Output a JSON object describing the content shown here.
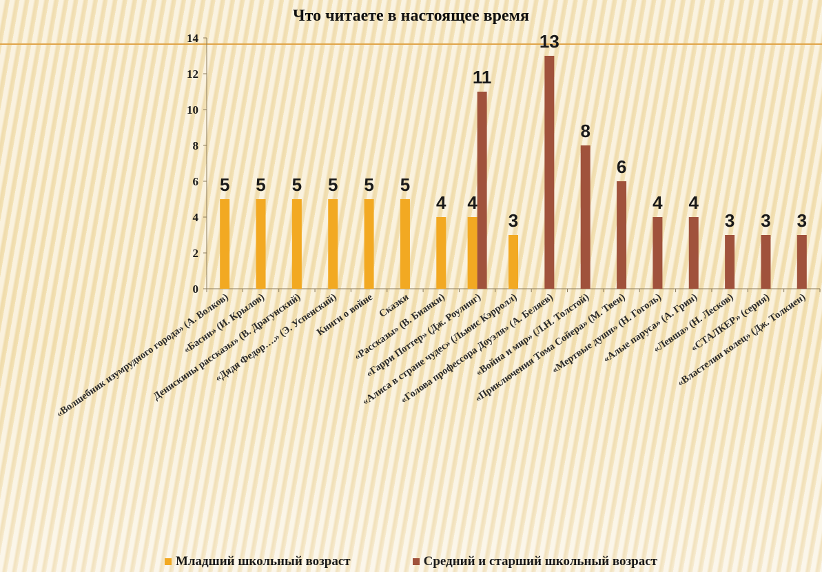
{
  "chart_data": {
    "type": "bar",
    "title": "Что читаете в настоящее время",
    "xlabel": "",
    "ylabel": "",
    "ylim": [
      0,
      14
    ],
    "yticks": [
      0,
      2,
      4,
      6,
      8,
      10,
      12,
      14
    ],
    "grid": false,
    "legend": "bottom",
    "categories": [
      "«Волшебник изумрудного города» (А. Волков)",
      "«Басни» (И. Крылов)",
      "Денискины рассказы» (В. Драгунский)",
      "«Дядя Федор….» (Э. Успенский)",
      "Книги о войне",
      "Сказки",
      "«Рассказы» (В. Бианки)",
      "«Гарри Поттер» (Дж. Роулинг)",
      "«Алиса в стране чудес» (Льюис Кэрролл)",
      "«Голова профессора Доуэля» (А. Беляев)",
      "«Война и мир» (Л.Н. Толстой)",
      "«Приключения Тома Сойера» (М. Твен)",
      "«Мертвые души» (Н. Гоголь)",
      "«Алые паруса» (А. Грин)",
      "«Левша» (Н. Лесков)",
      "«СТАЛКЕР» (серия)",
      "«Властелин колец» (Дж. Толкиен)"
    ],
    "series": [
      {
        "name": "Младший школьный возраст",
        "color": "#f2a922",
        "values": [
          5,
          5,
          5,
          5,
          5,
          5,
          4,
          4,
          3,
          null,
          null,
          null,
          null,
          null,
          null,
          null,
          null
        ]
      },
      {
        "name": "Средний и старший школьный возраст",
        "color": "#a0523c",
        "values": [
          null,
          null,
          null,
          null,
          null,
          null,
          null,
          11,
          null,
          13,
          8,
          6,
          4,
          4,
          3,
          3,
          3
        ]
      }
    ],
    "data_labels": [
      "5",
      "5",
      "5",
      "5",
      "5",
      "5",
      "4",
      "4",
      "11",
      "3",
      "13",
      "8",
      "6",
      "4",
      "4",
      "3",
      "3",
      "3"
    ]
  }
}
